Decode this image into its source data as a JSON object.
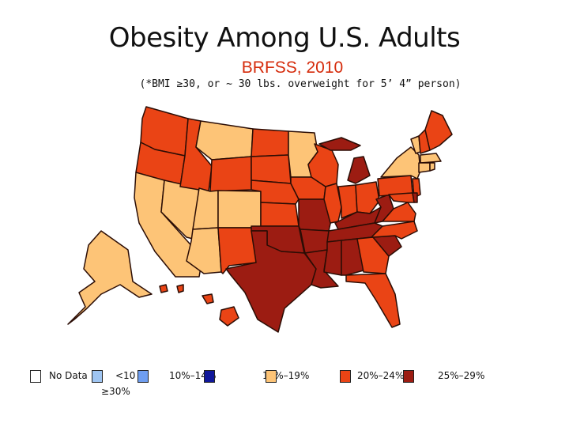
{
  "title": "Obesity Among U.S. Adults",
  "subtitle": "BRFSS, 2010",
  "note": "(*BMI ≥30, or ~ 30 lbs. overweight for 5’ 4” person)",
  "colors": {
    "no_data": "#ffffff",
    "lt10": "#9fc5f2",
    "c10_14": "#6f9ef0",
    "c15_19": "#10179a",
    "c20_24": "#fdc477",
    "c25_29": "#ea4415",
    "ge30": "#9c1c12",
    "border": "#2b0d05"
  },
  "legend": {
    "no_data": "No Data",
    "lt10": "<10",
    "c10_14": "10%–14%",
    "c15_19": "15%–19%",
    "c20_24": "20%–24%",
    "c25_29": "25%–29%",
    "ge30": "≥30%"
  }
}
